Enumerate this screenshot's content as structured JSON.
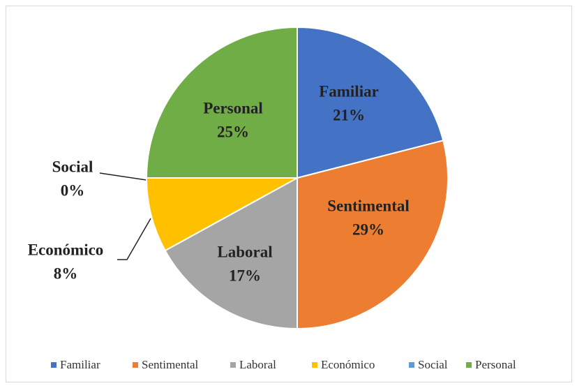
{
  "chart_data": {
    "type": "pie",
    "categories": [
      "Familiar",
      "Sentimental",
      "Laboral",
      "Económico",
      "Social",
      "Personal"
    ],
    "values": [
      21,
      29,
      17,
      8,
      0,
      25
    ],
    "value_labels": [
      "21%",
      "29%",
      "17%",
      "8%",
      "0%",
      "25%"
    ],
    "colors": [
      "#4472c4",
      "#ed7d31",
      "#a5a5a5",
      "#ffc000",
      "#5b9bd5",
      "#70ad47"
    ],
    "legend": "bottom"
  }
}
